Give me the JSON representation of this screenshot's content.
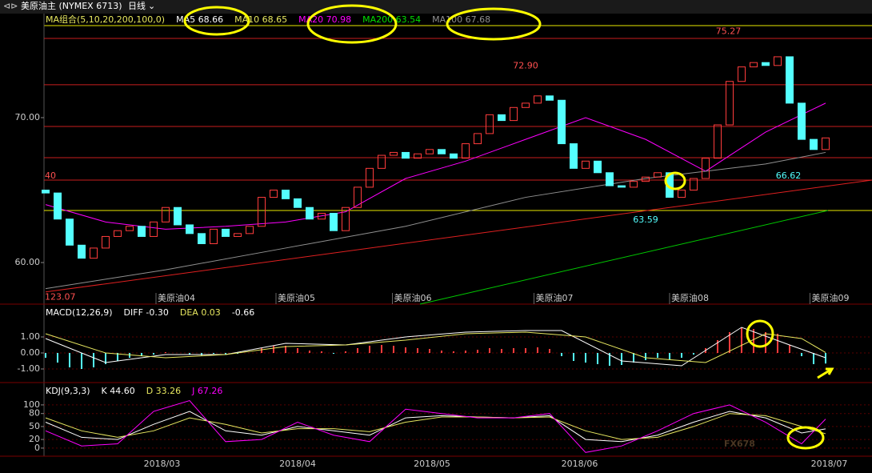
{
  "chart_data": {
    "type": "candlestick",
    "title": "美原油主 (NYMEX 6713)",
    "period": "日线",
    "watermark": "FX678",
    "ma_header": [
      {
        "text": "MA组合(5,10,20,200,100,0)",
        "color": "#e8e860"
      },
      {
        "text": "MA5 68.66",
        "color": "#ffffff"
      },
      {
        "text": "MA10 68.65",
        "color": "#e8e860"
      },
      {
        "text": "MA20 70.98",
        "color": "#ff00ff"
      },
      {
        "text": "MA200 63.54",
        "color": "#00e000"
      },
      {
        "text": "MA100 67.68",
        "color": "#909090"
      }
    ],
    "main": {
      "ylim": [
        57.13,
        76.24
      ],
      "yticks": [
        {
          "value": 70,
          "label": "70.00"
        },
        {
          "value": 60,
          "label": "60.00"
        }
      ],
      "up_color": "#ff3c3c",
      "down_color": "#54ffff",
      "first_open": 65.0,
      "closes": [
        64.8,
        63.0,
        61.2,
        60.3,
        61.0,
        61.8,
        62.2,
        62.5,
        61.8,
        62.8,
        63.8,
        62.6,
        62.0,
        61.3,
        62.3,
        61.8,
        62.0,
        62.5,
        64.5,
        65.0,
        64.4,
        63.8,
        63.0,
        63.4,
        62.2,
        63.8,
        65.2,
        66.5,
        67.4,
        67.6,
        67.2,
        67.5,
        67.8,
        67.5,
        67.2,
        68.2,
        68.9,
        70.2,
        69.8,
        70.7,
        71.0,
        71.5,
        71.2,
        68.2,
        66.5,
        67.0,
        66.2,
        65.3,
        65.2,
        65.6,
        65.9,
        66.2,
        64.5,
        65.0,
        65.8,
        67.2,
        69.5,
        72.5,
        73.5,
        73.8,
        73.6,
        74.2,
        71.0,
        68.5,
        67.8,
        68.6
      ],
      "levels": [
        {
          "value": 75.47,
          "color": "#c81e1e"
        },
        {
          "value": 72.27,
          "color": "#c81e1e"
        },
        {
          "value": 69.39,
          "color": "#c81e1e"
        },
        {
          "value": 67.24,
          "color": "#c81e1e"
        },
        {
          "value": 65.69,
          "color": "#c81e1e"
        },
        {
          "value": 63.59,
          "color": "#e8e800"
        }
      ],
      "lines": [
        {
          "color": "#ff00ff",
          "x": [
            0,
            5,
            10,
            15,
            20,
            25,
            30,
            35,
            40,
            45,
            50,
            55,
            60,
            65
          ],
          "values": [
            64.0,
            62.8,
            62.3,
            62.5,
            62.8,
            63.5,
            65.8,
            67.0,
            68.5,
            70.0,
            68.5,
            66.3,
            69.0,
            71.0
          ]
        },
        {
          "color": "#909090",
          "x": [
            0,
            10,
            20,
            30,
            40,
            50,
            60,
            65
          ],
          "values": [
            58.2,
            59.5,
            61.0,
            62.5,
            64.5,
            65.8,
            66.8,
            67.6
          ]
        },
        {
          "color": "#00c800",
          "x": [
            31.2,
            65.2
          ],
          "values": [
            57.13,
            63.59
          ]
        },
        {
          "color": "#e02020",
          "x": [
            0,
            68.87
          ],
          "values": [
            57.97,
            65.69
          ]
        }
      ],
      "annotations": [
        {
          "value": 72.9,
          "label": "72.90",
          "x": 40,
          "color": "#ff5050",
          "pos": "above"
        },
        {
          "value": 75.27,
          "label": "75.27",
          "x": 56.9,
          "color": "#ff5050",
          "pos": "above"
        },
        {
          "value": 63.59,
          "label": "63.59",
          "x": 50,
          "color": "#54ffff",
          "pos": "below"
        },
        {
          "value": 66.62,
          "label": "66.62",
          "x": 61.9,
          "color": "#54ffff",
          "pos": "below"
        }
      ],
      "edge_texts": [
        {
          "label": "40",
          "value": 65.97
        },
        {
          "label": "123.07",
          "value": 57.6
        }
      ],
      "month_marks": [
        {
          "label": "美原油04",
          "x": 9.2
        },
        {
          "label": "美原油05",
          "x": 19.2
        },
        {
          "label": "美原油06",
          "x": 28.9
        },
        {
          "label": "美原油07",
          "x": 40.7
        },
        {
          "label": "美原油08",
          "x": 52
        },
        {
          "label": "美原油09",
          "x": 63.7
        }
      ]
    },
    "macd": {
      "header": [
        {
          "text": "MACD(12,26,9)",
          "color": "#ffffff"
        },
        {
          "text": "DIFF -0.30",
          "color": "#ffffff"
        },
        {
          "text": "DEA 0.03",
          "color": "#e8e860"
        },
        {
          "text": "-0.66",
          "color": "#ffffff"
        }
      ],
      "ylim": [
        -1.85,
        2.9
      ],
      "yticks": [
        {
          "value": 1,
          "label": "1.00"
        },
        {
          "value": 0,
          "label": "0.00"
        },
        {
          "value": -1,
          "label": "-1.00"
        }
      ],
      "histogram": [
        -0.3,
        -0.6,
        -0.9,
        -1.0,
        -0.9,
        -0.7,
        -0.5,
        -0.3,
        -0.2,
        -0.1,
        0.05,
        0.0,
        -0.1,
        -0.15,
        -0.05,
        -0.1,
        -0.05,
        0.0,
        0.3,
        0.45,
        0.45,
        0.3,
        0.15,
        0.1,
        -0.05,
        0.1,
        0.3,
        0.45,
        0.5,
        0.45,
        0.35,
        0.3,
        0.25,
        0.15,
        0.1,
        0.15,
        0.2,
        0.3,
        0.25,
        0.3,
        0.3,
        0.35,
        0.25,
        -0.2,
        -0.5,
        -0.6,
        -0.7,
        -0.8,
        -0.75,
        -0.6,
        -0.45,
        -0.3,
        -0.4,
        -0.3,
        -0.1,
        0.3,
        0.8,
        1.3,
        1.6,
        1.5,
        1.3,
        1.2,
        0.5,
        -0.2,
        -0.7,
        -0.66
      ],
      "lines": [
        {
          "color": "#ffffff",
          "x": [
            0,
            5,
            10,
            15,
            20,
            25,
            30,
            35,
            40,
            43,
            48,
            53,
            58,
            62,
            65
          ],
          "values": [
            0.9,
            -0.6,
            -0.1,
            -0.1,
            0.6,
            0.5,
            1.0,
            1.3,
            1.4,
            1.4,
            -0.5,
            -0.8,
            1.6,
            0.5,
            -0.3
          ]
        },
        {
          "color": "#e8e860",
          "x": [
            0,
            5,
            10,
            15,
            20,
            25,
            30,
            35,
            40,
            45,
            50,
            55,
            60,
            63,
            65
          ],
          "values": [
            1.2,
            0.0,
            -0.3,
            -0.1,
            0.4,
            0.5,
            0.8,
            1.2,
            1.3,
            1.0,
            -0.3,
            -0.6,
            1.2,
            0.9,
            0.03
          ]
        }
      ]
    },
    "kdj": {
      "header": [
        {
          "text": "KDJ(9,3,3)",
          "color": "#ffffff"
        },
        {
          "text": "K 44.60",
          "color": "#ffffff"
        },
        {
          "text": "D 33.26",
          "color": "#e8e860"
        },
        {
          "text": "J 67.26",
          "color": "#ff00ff"
        }
      ],
      "ylim": [
        -15,
        148
      ],
      "yticks": [
        100,
        80,
        50,
        20,
        0
      ],
      "lines": [
        {
          "color": "#ffffff",
          "x": [
            0,
            3,
            6,
            9,
            12,
            15,
            18,
            21,
            24,
            27,
            30,
            33,
            36,
            39,
            42,
            45,
            48,
            51,
            54,
            57,
            60,
            63,
            65
          ],
          "values": [
            60,
            25,
            20,
            55,
            85,
            40,
            30,
            50,
            40,
            30,
            70,
            75,
            72,
            70,
            75,
            20,
            15,
            30,
            60,
            85,
            70,
            35,
            44.6
          ]
        },
        {
          "color": "#e8e860",
          "x": [
            0,
            3,
            6,
            9,
            12,
            15,
            18,
            21,
            24,
            27,
            30,
            33,
            36,
            39,
            42,
            45,
            48,
            51,
            54,
            57,
            60,
            63,
            65
          ],
          "values": [
            70,
            40,
            25,
            40,
            70,
            55,
            35,
            45,
            45,
            38,
            60,
            72,
            72,
            70,
            72,
            40,
            20,
            25,
            50,
            80,
            75,
            50,
            33.26
          ]
        },
        {
          "color": "#ff00ff",
          "x": [
            0,
            3,
            6,
            9,
            12,
            15,
            18,
            21,
            24,
            27,
            30,
            33,
            36,
            39,
            42,
            45,
            48,
            51,
            54,
            57,
            60,
            63,
            65
          ],
          "values": [
            40,
            5,
            10,
            85,
            110,
            15,
            20,
            60,
            30,
            15,
            90,
            80,
            70,
            70,
            80,
            -10,
            5,
            40,
            80,
            100,
            60,
            10,
            67.26
          ]
        }
      ]
    },
    "dates": [
      {
        "label": "2018/03",
        "x": 9.7
      },
      {
        "label": "2018/04",
        "x": 21
      },
      {
        "label": "2018/05",
        "x": 32.2
      },
      {
        "label": "2018/06",
        "x": 44.5
      },
      {
        "label": "2018/07",
        "x": 65.3
      }
    ]
  }
}
